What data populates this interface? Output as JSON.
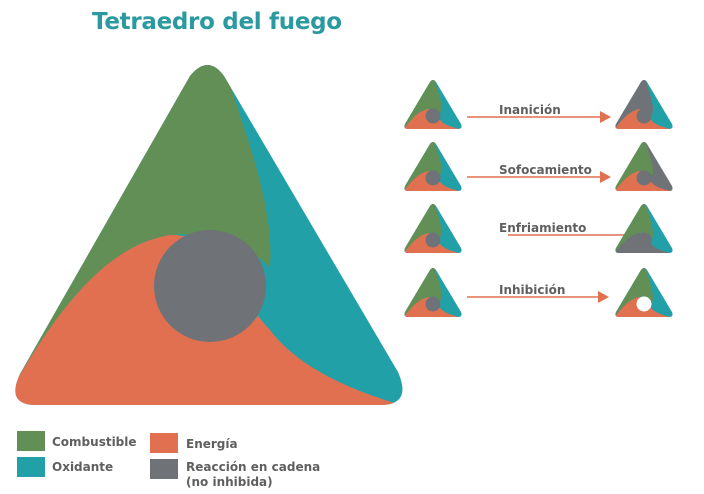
{
  "title": "Tetraedro del fuego",
  "colors": {
    "combustible": "#628f56",
    "oxidante": "#22a0a8",
    "energia": "#e07050",
    "reaccion": "#6f7276",
    "title": "#2a9aa0",
    "arrow": "#e07050"
  },
  "legend": [
    {
      "label": "Combustible",
      "color": "#628f56"
    },
    {
      "label": "Oxidante",
      "color": "#22a0a8"
    },
    {
      "label": "Energía",
      "color": "#e07050"
    },
    {
      "label": "Reacción en cadena",
      "label2": "(no inhibida)",
      "color": "#6f7276"
    }
  ],
  "processes": [
    {
      "label": "Inanición",
      "result_removed": "combustible"
    },
    {
      "label": "Sofocamiento",
      "result_removed": "oxidante"
    },
    {
      "label": "Enfriamiento",
      "result_removed": "energia"
    },
    {
      "label": "Inhibición",
      "result_removed": "reaccion"
    }
  ]
}
